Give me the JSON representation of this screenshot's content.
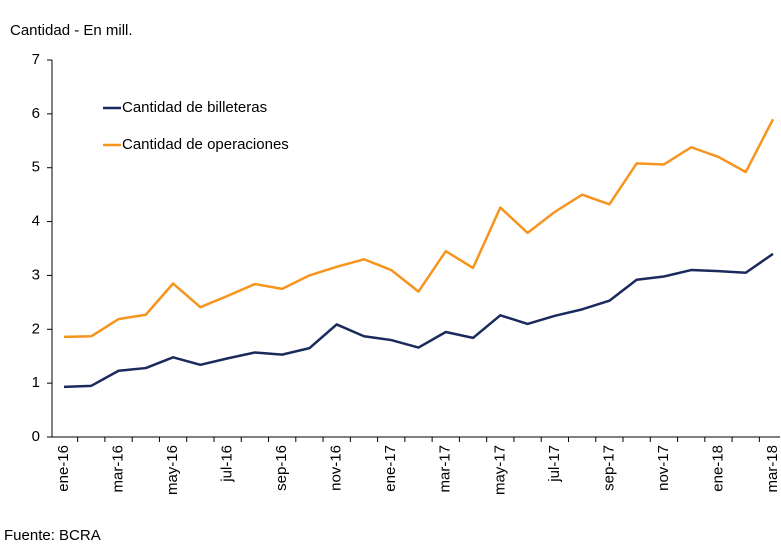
{
  "chart_data": {
    "type": "line",
    "y_axis_title": "Cantidad - En mill.",
    "source": "Fuente: BCRA",
    "categories": [
      "ene-16",
      null,
      "mar-16",
      null,
      "may-16",
      null,
      "jul-16",
      null,
      "sep-16",
      null,
      "nov-16",
      null,
      "ene-17",
      null,
      "mar-17",
      null,
      "may-17",
      null,
      "jul-17",
      null,
      "sep-17",
      null,
      "nov-17",
      null,
      "ene-18",
      null,
      "mar-18"
    ],
    "series": [
      {
        "name": "Cantidad de billeteras",
        "color": "#1b2a5c",
        "values": [
          0.93,
          0.95,
          1.23,
          1.28,
          1.48,
          1.34,
          1.46,
          1.57,
          1.53,
          1.65,
          2.09,
          1.87,
          1.8,
          1.66,
          1.95,
          1.84,
          2.26,
          2.1,
          2.25,
          2.37,
          2.53,
          2.92,
          2.98,
          3.1,
          3.08,
          3.05,
          3.4
        ]
      },
      {
        "name": "Cantidad de operaciones",
        "color": "#f7941d",
        "values": [
          1.86,
          1.87,
          2.19,
          2.27,
          2.85,
          2.41,
          2.62,
          2.84,
          2.75,
          3.0,
          3.16,
          3.3,
          3.1,
          2.7,
          3.45,
          3.14,
          4.26,
          3.79,
          4.18,
          4.5,
          4.32,
          5.08,
          5.06,
          5.38,
          5.2,
          4.92,
          5.9
        ]
      }
    ],
    "ylim": [
      0,
      7
    ],
    "yticks": [
      0,
      1,
      2,
      3,
      4,
      5,
      6,
      7
    ],
    "grid": false,
    "legend": "upper left"
  }
}
